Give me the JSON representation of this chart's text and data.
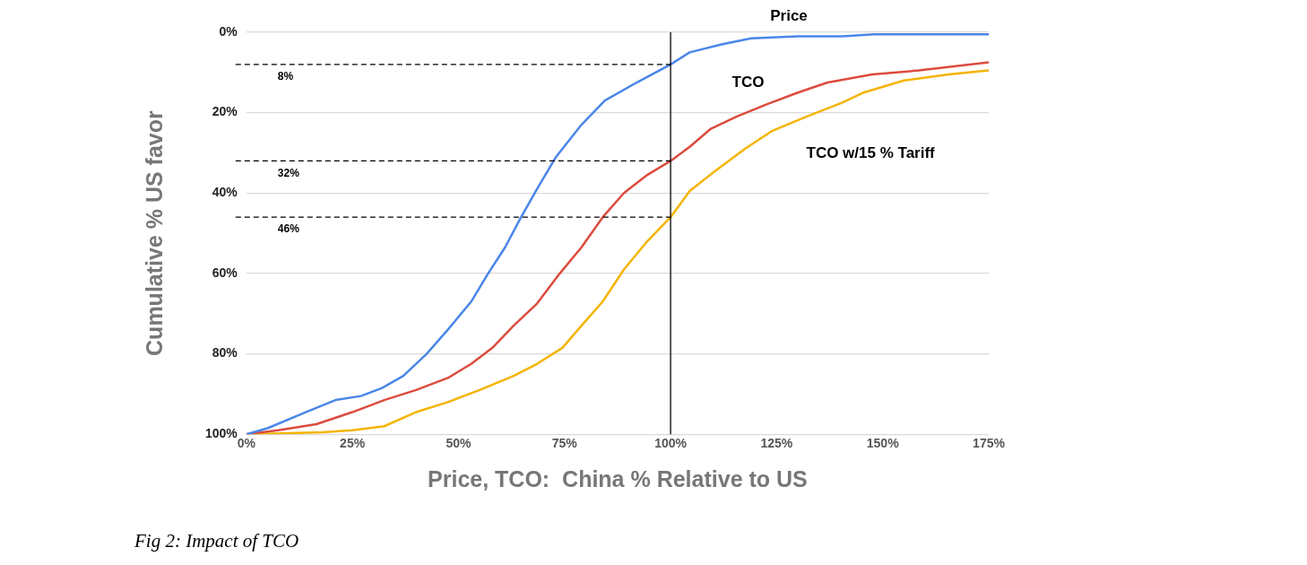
{
  "chart_data": {
    "type": "line",
    "xlabel": "Price, TCO:  China % Relative to US",
    "ylabel": "Cumulative % US favor",
    "xlim": [
      0,
      175
    ],
    "xticks": [
      {
        "value": 0,
        "label": "0%"
      },
      {
        "value": 25,
        "label": "25%"
      },
      {
        "value": 50,
        "label": "50%"
      },
      {
        "value": 75,
        "label": "75%"
      },
      {
        "value": 100,
        "label": "100%"
      },
      {
        "value": 125,
        "label": "125%"
      },
      {
        "value": 150,
        "label": "150%"
      },
      {
        "value": 175,
        "label": "175%"
      }
    ],
    "ylim": [
      100,
      0
    ],
    "yticks": [
      {
        "value": 0,
        "label": "0%"
      },
      {
        "value": 20,
        "label": "20%"
      },
      {
        "value": 40,
        "label": "40%"
      },
      {
        "value": 60,
        "label": "60%"
      },
      {
        "value": 80,
        "label": "80%"
      },
      {
        "value": 100,
        "label": "100%"
      }
    ],
    "grid": "y",
    "legend": false,
    "marker": "none",
    "line_style": "solid",
    "series": [
      {
        "name": "Price",
        "color": "#4a86e8",
        "x": [
          0,
          5,
          14,
          21,
          27,
          32,
          37,
          42.5,
          47.5,
          53,
          57,
          61,
          64.5,
          68.5,
          73,
          79,
          84.5,
          92,
          100,
          104.5,
          112,
          119,
          130,
          140.5,
          148,
          175
        ],
        "values": [
          100,
          98.5,
          94.5,
          91.5,
          90.5,
          88.5,
          85.5,
          80,
          74,
          67,
          60,
          53.5,
          46.5,
          39,
          31,
          23,
          17,
          12.5,
          8,
          5,
          3,
          1.5,
          1,
          1,
          0.5,
          0.5
        ]
      },
      {
        "name": "TCO",
        "color": "#dc4b3e",
        "x": [
          0,
          7.5,
          16.5,
          25,
          32.5,
          40,
          47.5,
          53,
          58,
          63,
          68.5,
          73.5,
          79,
          84,
          89,
          94.5,
          100,
          104.5,
          109.5,
          115.5,
          122.5,
          130,
          137,
          147.5,
          158.5,
          175
        ],
        "values": [
          100,
          99,
          97.5,
          94.5,
          91.5,
          89,
          86,
          82.5,
          78.5,
          73,
          67.5,
          60.5,
          53.5,
          46,
          40,
          35.5,
          32,
          28.5,
          24,
          21,
          18,
          15,
          12.5,
          10.5,
          9.5,
          7.5
        ]
      },
      {
        "name": "TCO w/15 % Tariff",
        "color": "#f4b400",
        "x": [
          0,
          18,
          25,
          32.5,
          40,
          47.5,
          55,
          63,
          68.5,
          74.5,
          79,
          84,
          89,
          94.5,
          100,
          104.5,
          110.5,
          117.5,
          124,
          132,
          140.5,
          145.5,
          155,
          165.5,
          175
        ],
        "values": [
          100,
          99.5,
          99,
          98,
          94.5,
          92,
          89,
          85.5,
          82.5,
          78.5,
          73,
          67,
          59,
          52,
          46,
          39.5,
          34.5,
          29,
          24.5,
          21,
          17.5,
          15,
          12,
          10.5,
          9.5
        ]
      }
    ],
    "ref_lines": [
      {
        "axis": "x",
        "value": 100,
        "label": null,
        "color": "#000000",
        "line_style": "solid"
      },
      {
        "axis": "y",
        "value": 8,
        "label": "8%",
        "color": "#000000",
        "line_style": "dashed"
      },
      {
        "axis": "y",
        "value": 32,
        "label": "32%",
        "color": "#000000",
        "line_style": "dashed"
      },
      {
        "axis": "y",
        "value": 46,
        "label": "46%",
        "color": "#000000",
        "line_style": "dashed"
      }
    ],
    "annotations": [
      "Fig 2: Impact of TCO"
    ]
  }
}
